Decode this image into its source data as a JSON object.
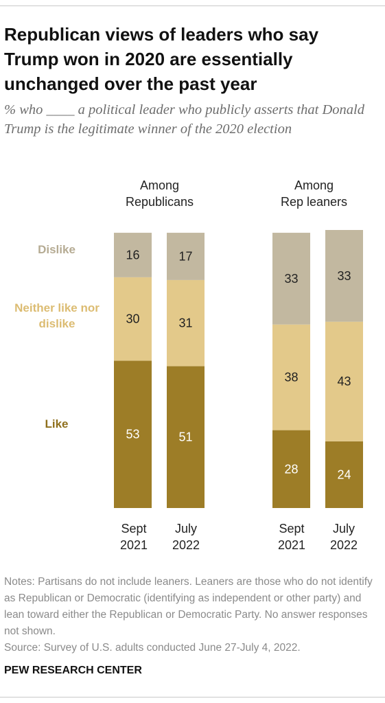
{
  "title": "Republican views of leaders who say Trump won in 2020 are essentially unchanged over the past year",
  "subtitle": "% who ____ a political leader who publicly asserts that Donald Trump is the legitimate winner of the 2020 election",
  "colors": {
    "Dislike": "#c2b8a0",
    "Neither like nor dislike": "#e3c98a",
    "Like": "#9d7d27",
    "text_on_dark": "#ffffff",
    "text_on_light": "#222222"
  },
  "segment_labels": {
    "dislike": "Dislike",
    "neither": "Neither like nor dislike",
    "like": "Like"
  },
  "chart_data": {
    "type": "bar",
    "stacked": true,
    "orientation": "vertical",
    "groups": [
      {
        "name": "Among Republicans",
        "categories": [
          "Sept 2021",
          "July 2022"
        ],
        "series": [
          {
            "name": "Like",
            "values": [
              53,
              51
            ]
          },
          {
            "name": "Neither like nor dislike",
            "values": [
              30,
              31
            ]
          },
          {
            "name": "Dislike",
            "values": [
              16,
              17
            ]
          }
        ]
      },
      {
        "name": "Among Rep leaners",
        "categories": [
          "Sept 2021",
          "July 2022"
        ],
        "series": [
          {
            "name": "Like",
            "values": [
              28,
              24
            ]
          },
          {
            "name": "Neither like nor dislike",
            "values": [
              38,
              43
            ]
          },
          {
            "name": "Dislike",
            "values": [
              33,
              33
            ]
          }
        ]
      }
    ],
    "legend": "left, inline with bars",
    "grid": false
  },
  "notes": "Notes: Partisans do not include leaners. Leaners are those who do not identify as Republican or Democratic (identifying as independent or other party) and lean toward either the Republican or Democratic Party. No answer responses not shown.",
  "source": "Source: Survey of U.S. adults conducted June 27-July 4, 2022.",
  "brand": "PEW RESEARCH CENTER"
}
